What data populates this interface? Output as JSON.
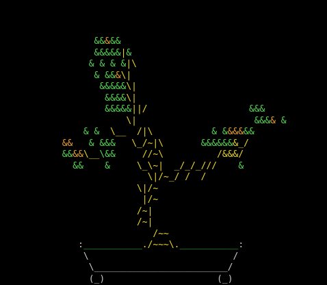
{
  "colors": {
    "background": "#000000",
    "leaf_green": "#55d655",
    "leaf_dark_green": "#2aa82a",
    "leaf_orange": "#e8a030",
    "trunk_yellow": "#e8d22a",
    "pot_grey": "#c8c8c8",
    "soil_green": "#29c429"
  },
  "art": {
    "rows": [
      {
        "segments": [
          {
            "t": "                  ",
            "c": "g"
          },
          {
            "t": "&&",
            "c": "g"
          },
          {
            "t": "&",
            "c": "o"
          },
          {
            "t": "&&",
            "c": "g"
          }
        ]
      },
      {
        "segments": [
          {
            "t": "                  ",
            "c": "g"
          },
          {
            "t": "&&&&&",
            "c": "g"
          },
          {
            "t": "|",
            "c": "y"
          },
          {
            "t": "&",
            "c": "g"
          }
        ]
      },
      {
        "segments": [
          {
            "t": "                 ",
            "c": "g"
          },
          {
            "t": "& & & &",
            "c": "g"
          },
          {
            "t": "|\\",
            "c": "y"
          }
        ]
      },
      {
        "segments": [
          {
            "t": "                  ",
            "c": "g"
          },
          {
            "t": "& &&",
            "c": "g"
          },
          {
            "t": "&",
            "c": "o"
          },
          {
            "t": "\\|",
            "c": "y"
          }
        ]
      },
      {
        "segments": [
          {
            "t": "                   ",
            "c": "g"
          },
          {
            "t": "&&&&&",
            "c": "g"
          },
          {
            "t": "\\|",
            "c": "y"
          }
        ]
      },
      {
        "segments": [
          {
            "t": "                    ",
            "c": "g"
          },
          {
            "t": "&&&&",
            "c": "g"
          },
          {
            "t": "\\|",
            "c": "y"
          }
        ]
      },
      {
        "segments": [
          {
            "t": "                    ",
            "c": "g"
          },
          {
            "t": "&&&&&",
            "c": "g"
          },
          {
            "t": "||/",
            "c": "y"
          },
          {
            "t": "                   ",
            "c": "g"
          },
          {
            "t": "&&&",
            "c": "g"
          }
        ]
      },
      {
        "segments": [
          {
            "t": "                        ",
            "c": "g"
          },
          {
            "t": "\\|",
            "c": "y"
          },
          {
            "t": "                      ",
            "c": "g"
          },
          {
            "t": "&&&",
            "c": "g"
          },
          {
            "t": "& ",
            "c": "o"
          },
          {
            "t": "&",
            "c": "g"
          }
        ]
      },
      {
        "segments": [
          {
            "t": "                ",
            "c": "g"
          },
          {
            "t": "& &",
            "c": "g"
          },
          {
            "t": "  \\__  /|\\",
            "c": "y"
          },
          {
            "t": "           ",
            "c": "g"
          },
          {
            "t": "& &",
            "c": "g"
          },
          {
            "t": "&&&",
            "c": "o"
          },
          {
            "t": "&&",
            "c": "g"
          }
        ]
      },
      {
        "segments": [
          {
            "t": "            ",
            "c": "g"
          },
          {
            "t": "&&",
            "c": "o"
          },
          {
            "t": "   ",
            "c": "g"
          },
          {
            "t": "& &&&",
            "c": "g"
          },
          {
            "t": "   \\_/~|\\",
            "c": "y"
          },
          {
            "t": "       ",
            "c": "g"
          },
          {
            "t": "&&&&&&",
            "c": "g"
          },
          {
            "t": "&_/",
            "c": "y"
          }
        ]
      },
      {
        "segments": [
          {
            "t": "            ",
            "c": "g"
          },
          {
            "t": "&&",
            "c": "g"
          },
          {
            "t": "&&",
            "c": "o"
          },
          {
            "t": "\\__",
            "c": "y"
          },
          {
            "t": "\\&&",
            "c": "g"
          },
          {
            "t": "     //~\\",
            "c": "y"
          },
          {
            "t": "          ",
            "c": "g"
          },
          {
            "t": "/&&&/",
            "c": "y"
          }
        ]
      },
      {
        "segments": [
          {
            "t": "              ",
            "c": "g"
          },
          {
            "t": "&&",
            "c": "g"
          },
          {
            "t": "    ",
            "c": "g"
          },
          {
            "t": "&",
            "c": "g"
          },
          {
            "t": "     \\_\\~|  _/_/_///",
            "c": "y"
          },
          {
            "t": "    ",
            "c": "g"
          },
          {
            "t": "&",
            "c": "g"
          }
        ]
      },
      {
        "segments": [
          {
            "t": "                            ",
            "c": "g"
          },
          {
            "t": "\\|/~_/ /  /",
            "c": "y"
          }
        ]
      },
      {
        "segments": [
          {
            "t": "                          ",
            "c": "g"
          },
          {
            "t": "\\|/~",
            "c": "y"
          }
        ]
      },
      {
        "segments": [
          {
            "t": "                           ",
            "c": "g"
          },
          {
            "t": "|/~",
            "c": "y"
          }
        ]
      },
      {
        "segments": [
          {
            "t": "                          ",
            "c": "g"
          },
          {
            "t": "/~|",
            "c": "y"
          }
        ]
      },
      {
        "segments": [
          {
            "t": "                          ",
            "c": "g"
          },
          {
            "t": "/~|",
            "c": "y"
          }
        ]
      },
      {
        "segments": [
          {
            "t": "                             ",
            "c": "g"
          },
          {
            "t": "/~~",
            "c": "y"
          }
        ]
      },
      {
        "segments": [
          {
            "t": "               ",
            "c": "g"
          },
          {
            "t": ":",
            "c": "p"
          },
          {
            "t": "___________",
            "c": "s"
          },
          {
            "t": "./~~~\\.",
            "c": "y"
          },
          {
            "t": "___________",
            "c": "s"
          },
          {
            "t": ":",
            "c": "p"
          }
        ]
      },
      {
        "segments": [
          {
            "t": "                ",
            "c": "g"
          },
          {
            "t": "\\                           /",
            "c": "p"
          }
        ]
      },
      {
        "segments": [
          {
            "t": "                 ",
            "c": "g"
          },
          {
            "t": "\\_________________________/",
            "c": "p"
          }
        ]
      },
      {
        "segments": [
          {
            "t": "                 ",
            "c": "g"
          },
          {
            "t": "(_)",
            "c": "p"
          },
          {
            "t": "                     ",
            "c": "g"
          },
          {
            "t": "(_)",
            "c": "p"
          }
        ]
      }
    ]
  }
}
